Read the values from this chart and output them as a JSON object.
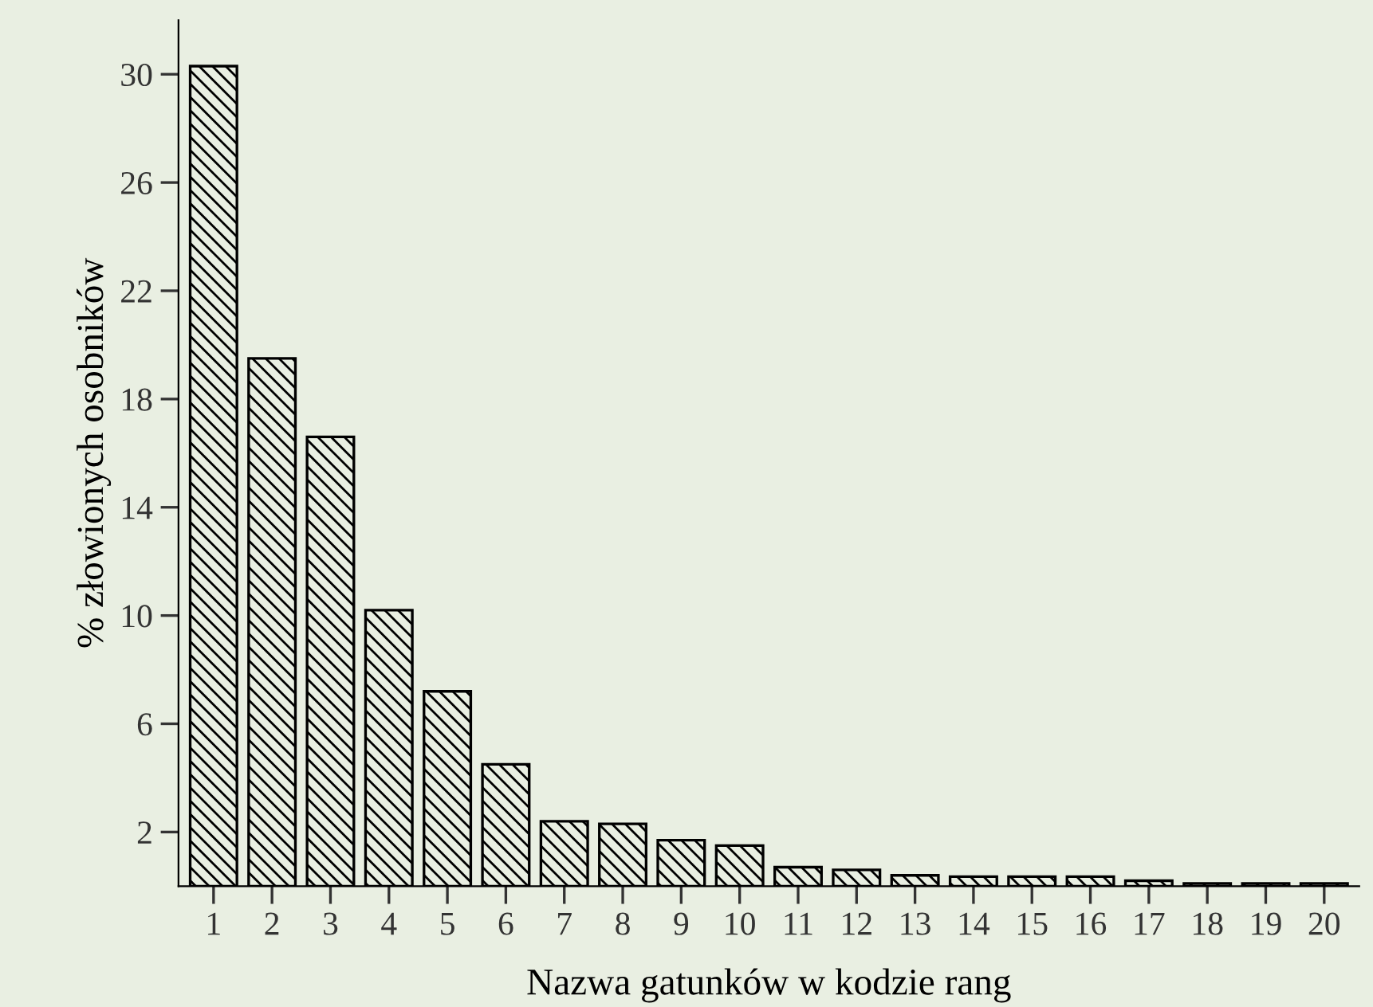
{
  "chart_data": {
    "type": "bar",
    "xlabel": "Nazwa gatunków w kodzie rang",
    "ylabel": "% złowionych osobników",
    "categories": [
      "1",
      "2",
      "3",
      "4",
      "5",
      "6",
      "7",
      "8",
      "9",
      "10",
      "11",
      "12",
      "13",
      "14",
      "15",
      "16",
      "17",
      "18",
      "19",
      "20"
    ],
    "values": [
      30.3,
      19.5,
      16.6,
      10.2,
      7.2,
      4.5,
      2.4,
      2.3,
      1.7,
      1.5,
      0.7,
      0.6,
      0.4,
      0.35,
      0.35,
      0.35,
      0.2,
      0.1,
      0.1,
      0.1
    ],
    "color": "#000000",
    "ylim": [
      0,
      32
    ],
    "yticks": [
      2,
      6,
      10,
      14,
      18,
      22,
      26,
      30
    ],
    "grid": false,
    "legend": false
  }
}
